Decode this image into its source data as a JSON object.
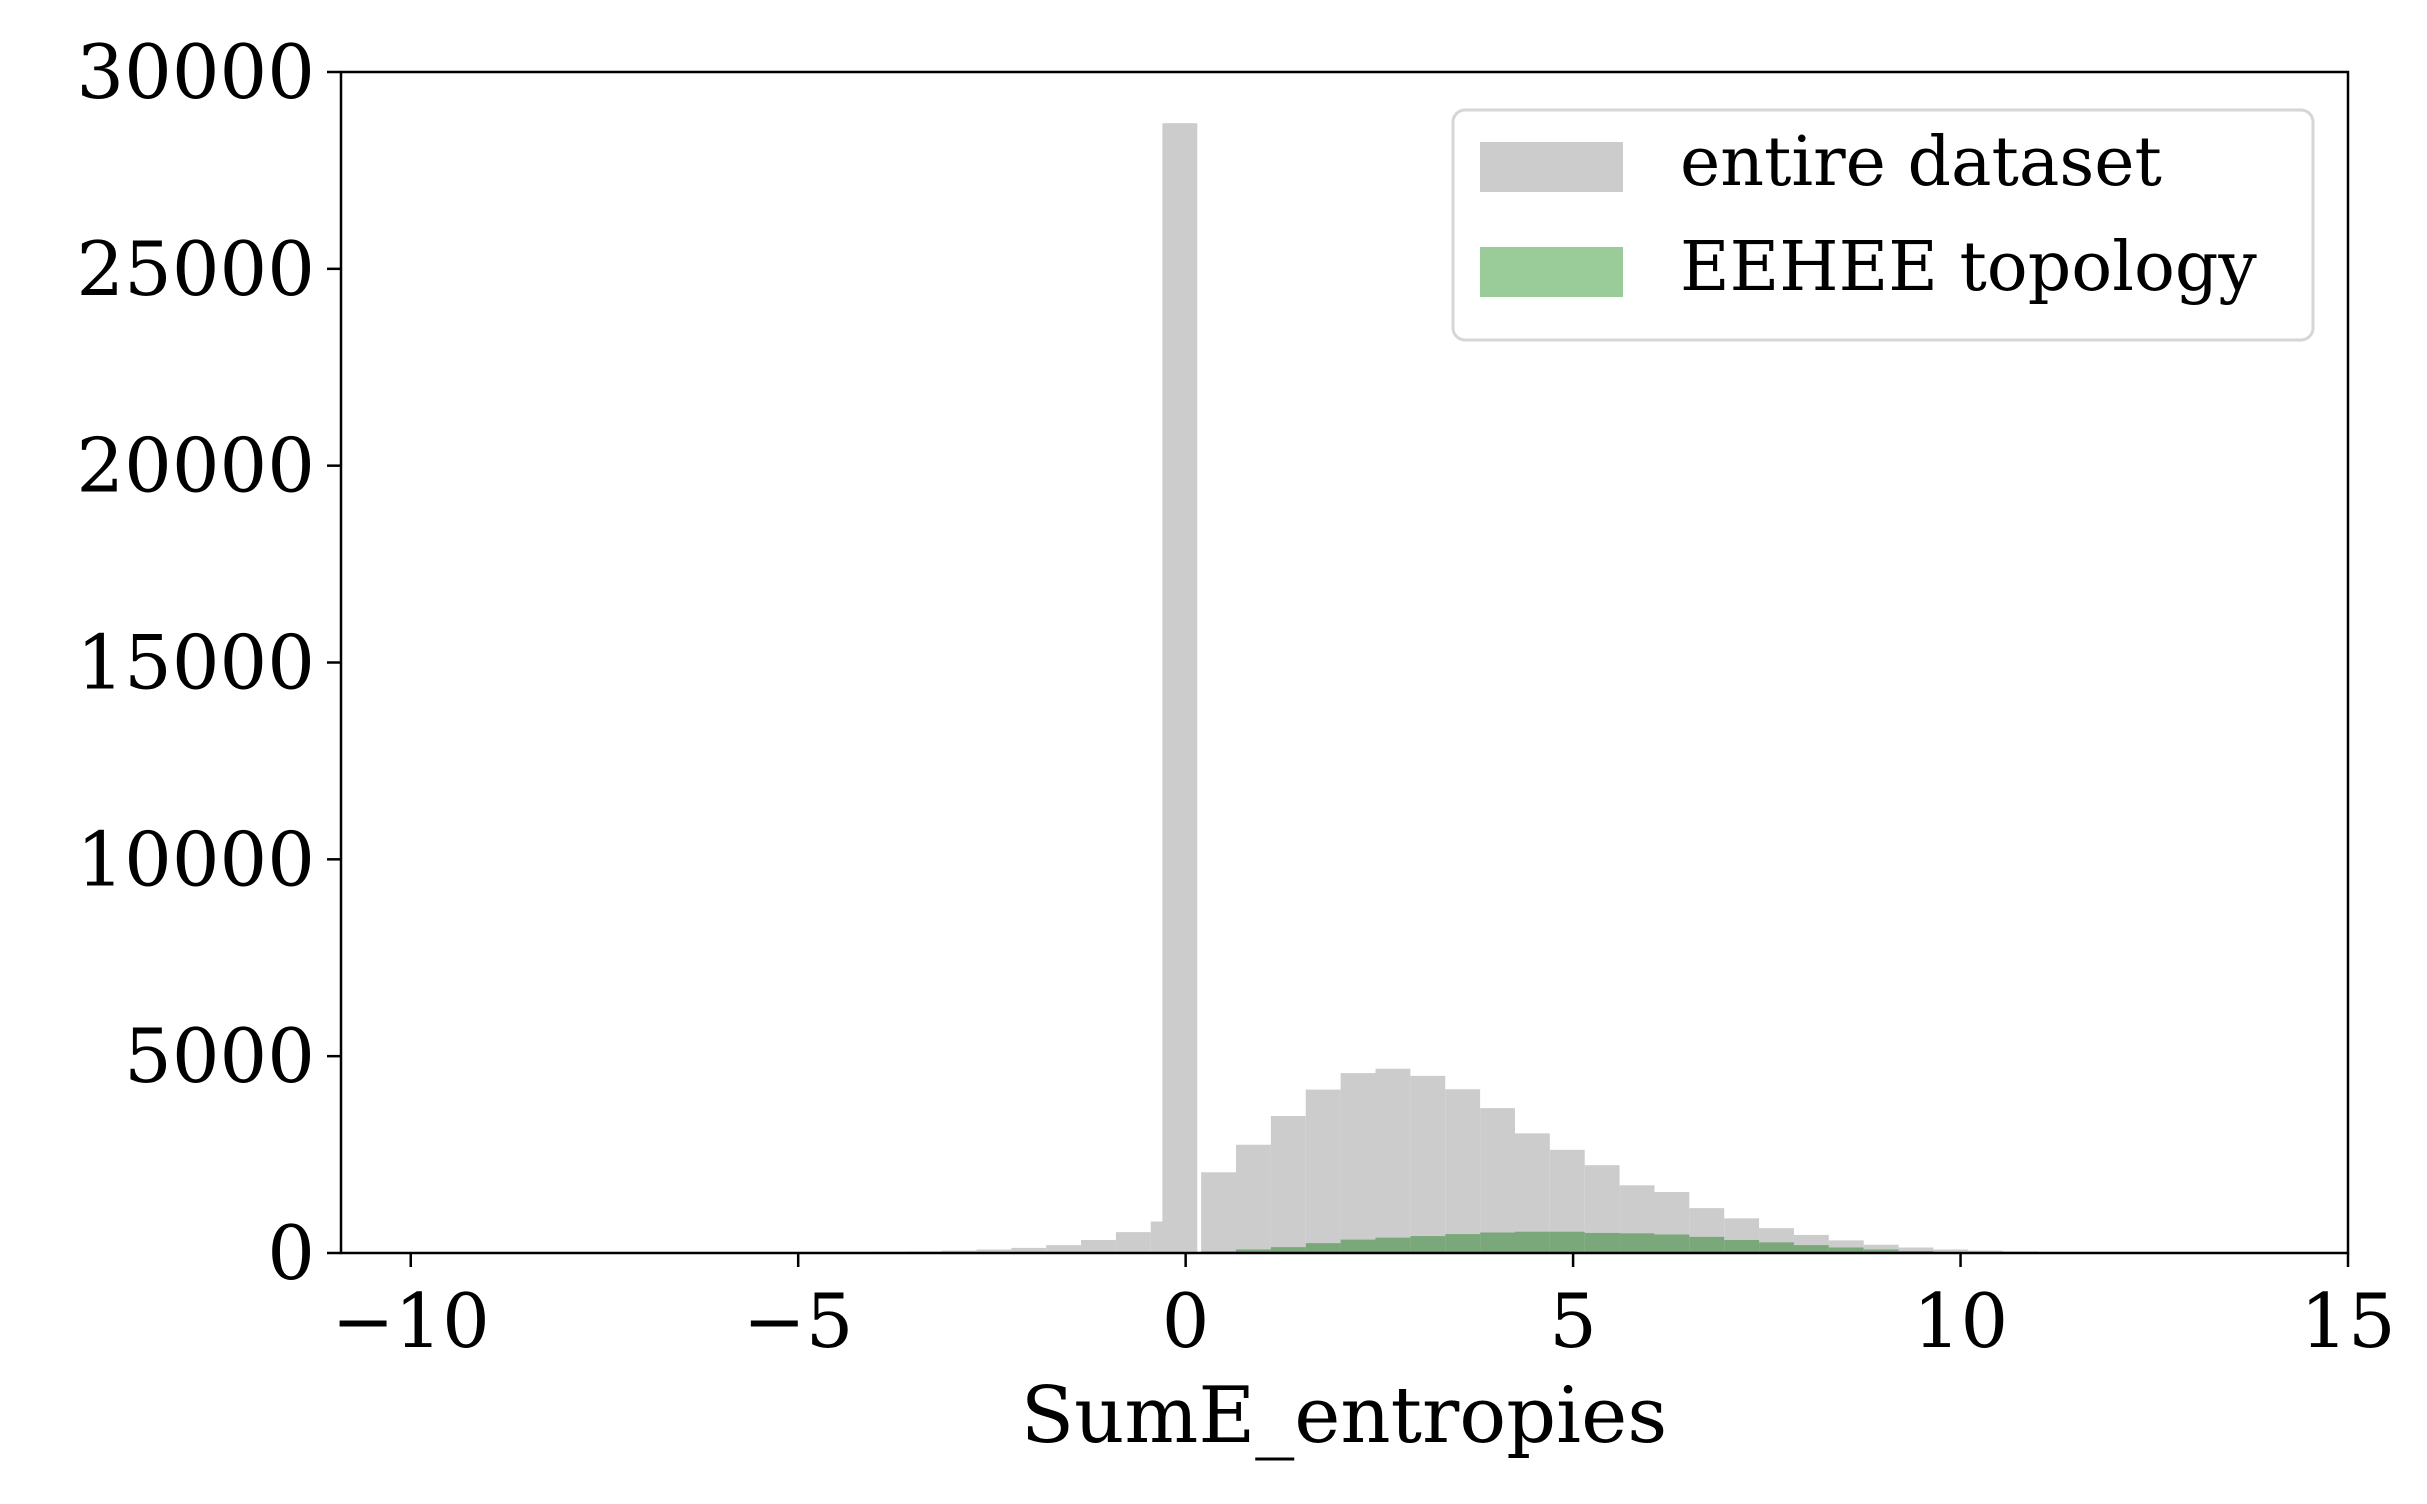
{
  "chart_data": {
    "type": "bar",
    "title": "",
    "xlabel": "SumE_entropies",
    "ylabel": "",
    "xlim": [
      -10.9,
      15
    ],
    "ylim": [
      0,
      30000
    ],
    "xticks": [
      -10,
      -5,
      0,
      5,
      10,
      15
    ],
    "xtick_labels": [
      "−10",
      "−5",
      "0",
      "5",
      "10",
      "15"
    ],
    "yticks": [
      0,
      5000,
      10000,
      15000,
      20000,
      25000,
      30000
    ],
    "ytick_labels": [
      "0",
      "5000",
      "10000",
      "15000",
      "20000",
      "25000",
      "30000"
    ],
    "grid": false,
    "legend_position": "top-right",
    "bin_width": 0.45,
    "series": [
      {
        "name": "entire dataset",
        "color": "#cccccc",
        "bins": [
          {
            "x0": -4.5,
            "value": 20
          },
          {
            "x0": -4.05,
            "value": 30
          },
          {
            "x0": -3.6,
            "value": 40
          },
          {
            "x0": -3.15,
            "value": 60
          },
          {
            "x0": -2.7,
            "value": 90
          },
          {
            "x0": -2.25,
            "value": 130
          },
          {
            "x0": -1.8,
            "value": 200
          },
          {
            "x0": -1.35,
            "value": 330
          },
          {
            "x0": -0.9,
            "value": 530
          },
          {
            "x0": -0.45,
            "value": 800
          },
          {
            "x0": -0.3,
            "value": 28700
          },
          {
            "x0": 0.2,
            "value": 2050
          },
          {
            "x0": 0.65,
            "value": 2750
          },
          {
            "x0": 1.1,
            "value": 3480
          },
          {
            "x0": 1.55,
            "value": 4150
          },
          {
            "x0": 2.0,
            "value": 4570
          },
          {
            "x0": 2.45,
            "value": 4680
          },
          {
            "x0": 2.9,
            "value": 4500
          },
          {
            "x0": 3.35,
            "value": 4160
          },
          {
            "x0": 3.8,
            "value": 3680
          },
          {
            "x0": 4.25,
            "value": 3040
          },
          {
            "x0": 4.7,
            "value": 2620
          },
          {
            "x0": 5.15,
            "value": 2230
          },
          {
            "x0": 5.6,
            "value": 1720
          },
          {
            "x0": 6.05,
            "value": 1550
          },
          {
            "x0": 6.5,
            "value": 1140
          },
          {
            "x0": 6.95,
            "value": 880
          },
          {
            "x0": 7.4,
            "value": 630
          },
          {
            "x0": 7.85,
            "value": 460
          },
          {
            "x0": 8.3,
            "value": 320
          },
          {
            "x0": 8.75,
            "value": 210
          },
          {
            "x0": 9.2,
            "value": 140
          },
          {
            "x0": 9.65,
            "value": 90
          },
          {
            "x0": 10.1,
            "value": 60
          },
          {
            "x0": 10.55,
            "value": 40
          },
          {
            "x0": 11.0,
            "value": 20
          }
        ]
      },
      {
        "name": "EEHEE topology",
        "color": "#99cc99",
        "overlap_color": "#7aa87a",
        "bins": [
          {
            "x0": 0.2,
            "value": 40
          },
          {
            "x0": 0.65,
            "value": 90
          },
          {
            "x0": 1.1,
            "value": 150
          },
          {
            "x0": 1.55,
            "value": 250
          },
          {
            "x0": 2.0,
            "value": 340
          },
          {
            "x0": 2.45,
            "value": 390
          },
          {
            "x0": 2.9,
            "value": 430
          },
          {
            "x0": 3.35,
            "value": 480
          },
          {
            "x0": 3.8,
            "value": 520
          },
          {
            "x0": 4.25,
            "value": 540
          },
          {
            "x0": 4.7,
            "value": 540
          },
          {
            "x0": 5.15,
            "value": 510
          },
          {
            "x0": 5.6,
            "value": 500
          },
          {
            "x0": 6.05,
            "value": 470
          },
          {
            "x0": 6.5,
            "value": 410
          },
          {
            "x0": 6.95,
            "value": 330
          },
          {
            "x0": 7.4,
            "value": 270
          },
          {
            "x0": 7.85,
            "value": 200
          },
          {
            "x0": 8.3,
            "value": 140
          },
          {
            "x0": 8.75,
            "value": 90
          },
          {
            "x0": 9.2,
            "value": 50
          },
          {
            "x0": 9.65,
            "value": 20
          }
        ]
      }
    ]
  }
}
